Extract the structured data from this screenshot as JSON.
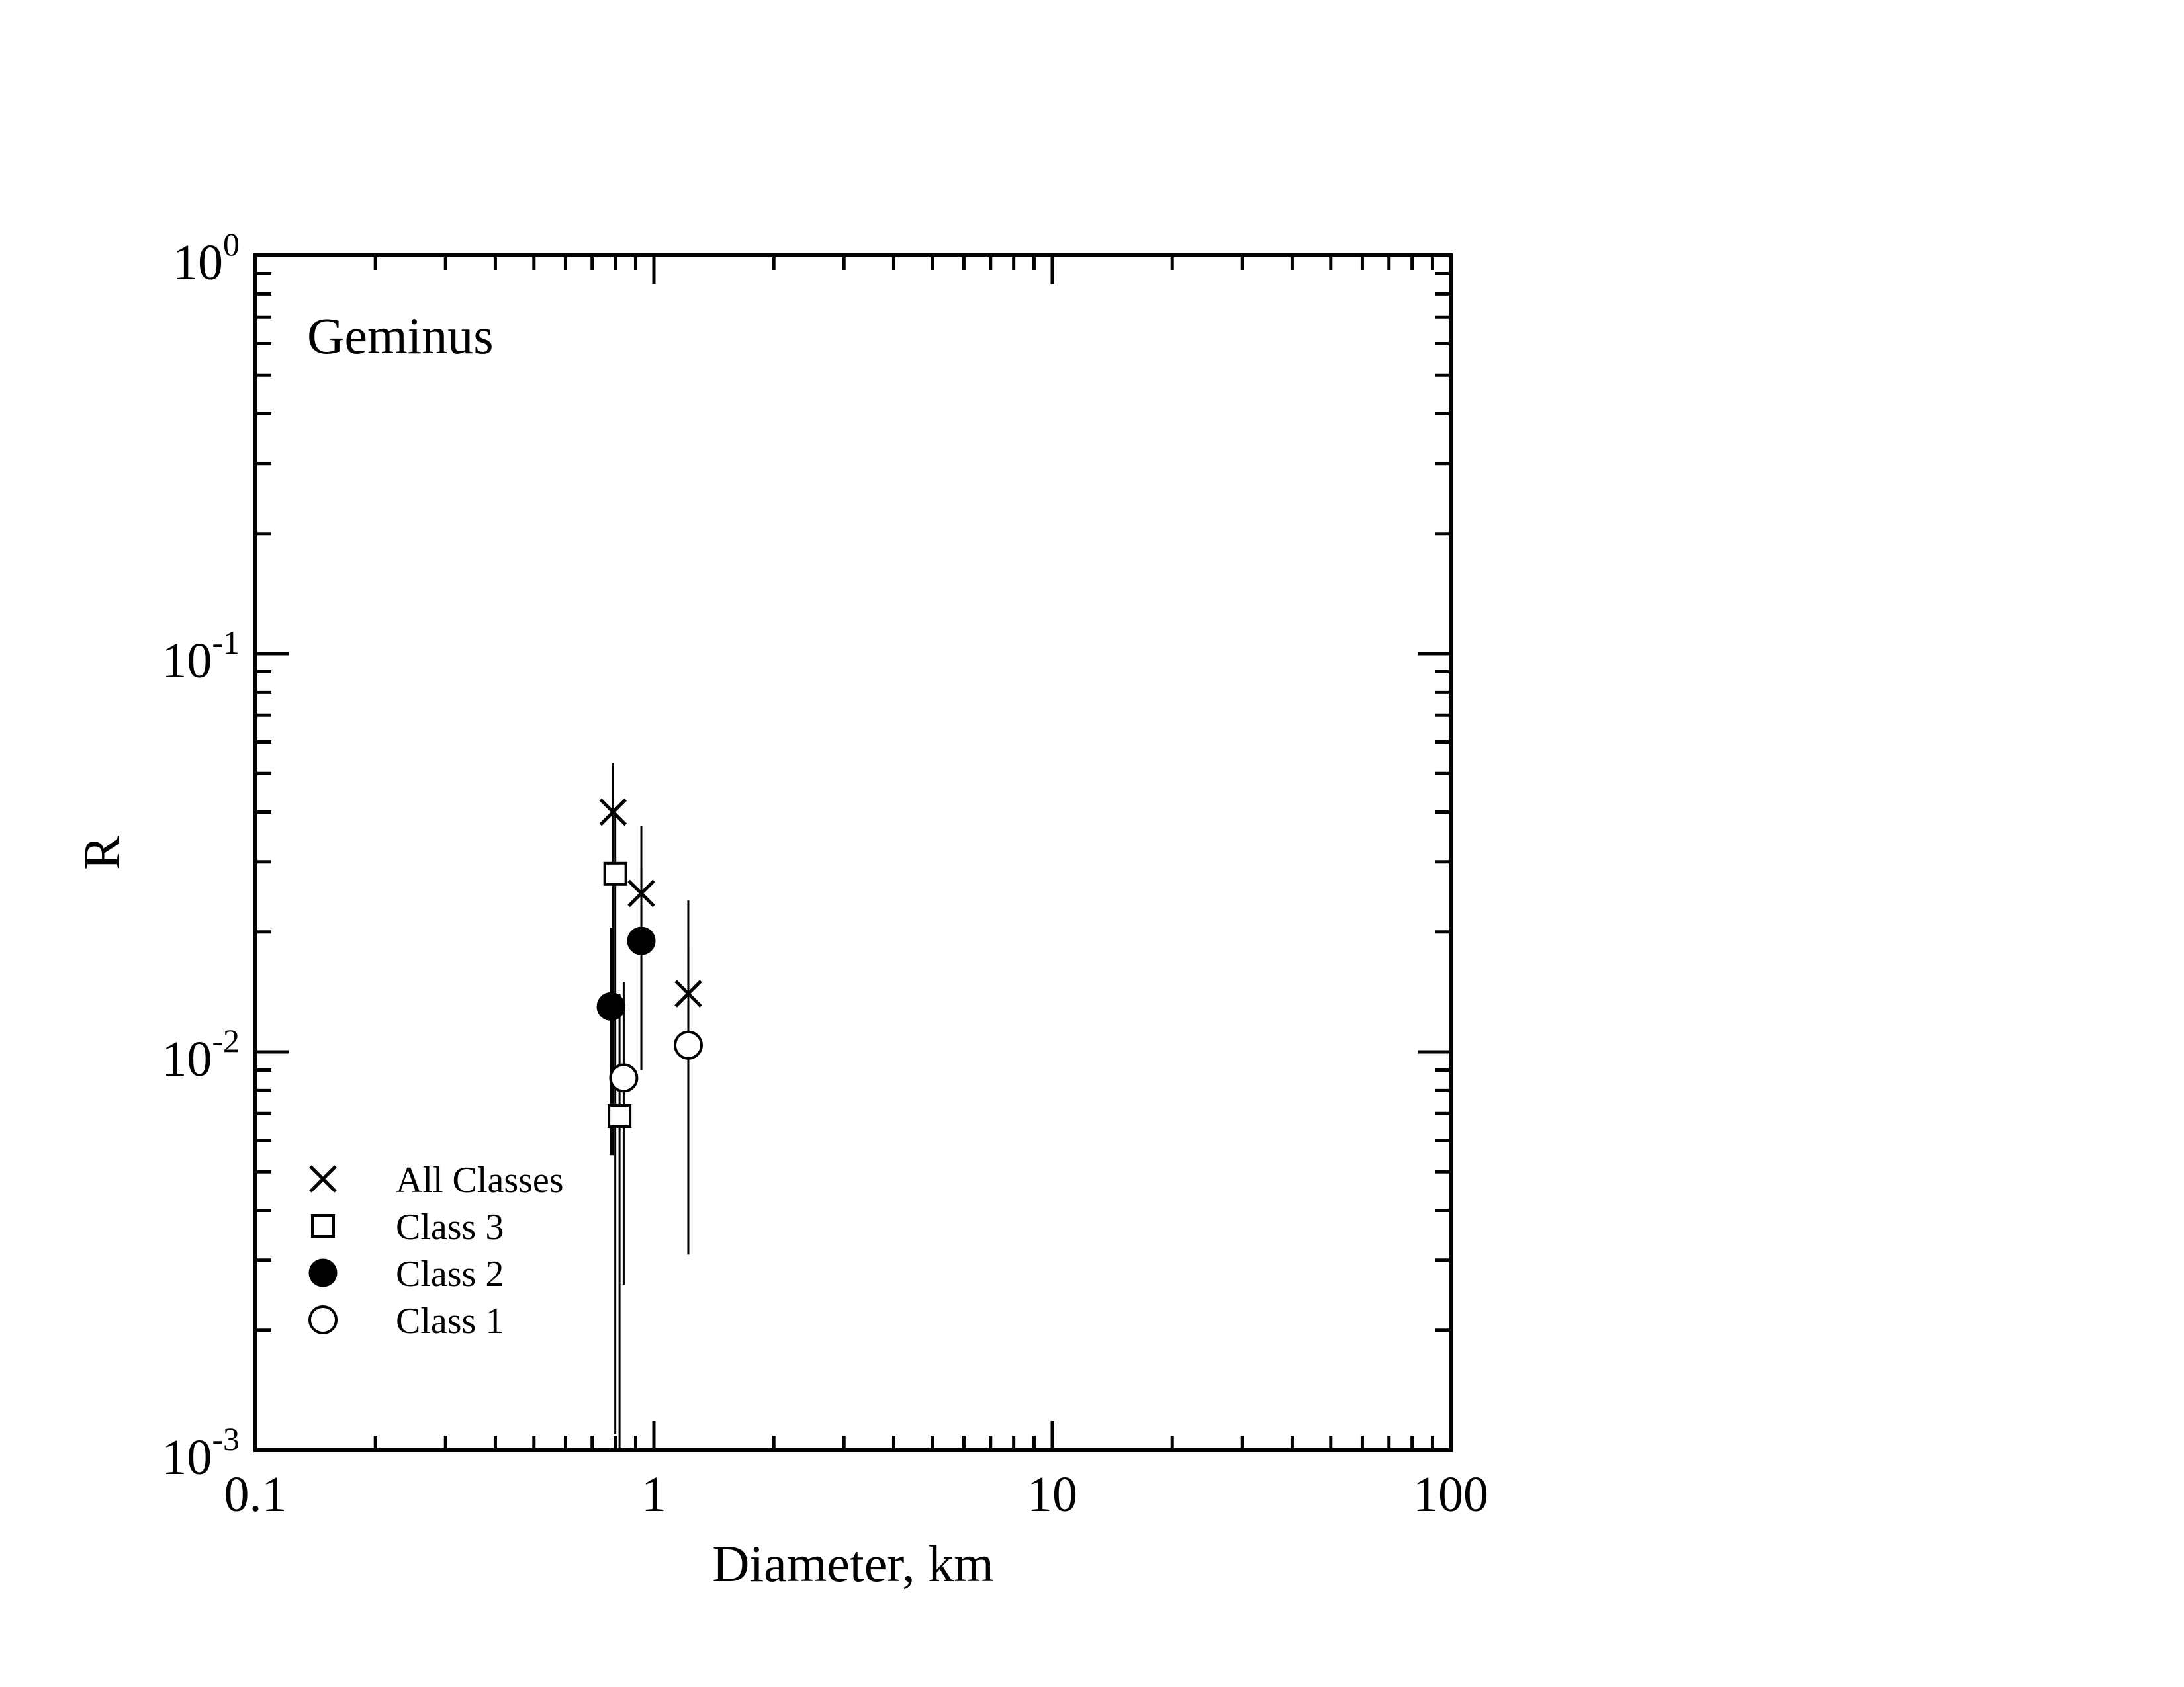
{
  "chart_data": {
    "type": "scatter",
    "annotation": "Geminus",
    "xlabel": "Diameter, km",
    "ylabel": "R",
    "xscale": "log",
    "yscale": "log",
    "xlim": [
      0.1,
      100
    ],
    "ylim": [
      0.001,
      1
    ],
    "x_tick_labels": [
      {
        "value": 0.1,
        "label": "0.1"
      },
      {
        "value": 1,
        "label": "1"
      },
      {
        "value": 10,
        "label": "10"
      },
      {
        "value": 100,
        "label": "100"
      }
    ],
    "y_tick_labels": [
      {
        "value": 1,
        "base": "10",
        "exp": "0"
      },
      {
        "value": 0.1,
        "base": "10",
        "exp": "-1"
      },
      {
        "value": 0.01,
        "base": "10",
        "exp": "-2"
      },
      {
        "value": 0.001,
        "base": "10",
        "exp": "-3"
      }
    ],
    "legend_position": "bottom-left",
    "series": [
      {
        "name": "All Classes",
        "marker": "x",
        "points": [
          {
            "x": 0.79,
            "y": 0.04,
            "ylow": 0.0055,
            "yhigh": 0.053
          },
          {
            "x": 0.93,
            "y": 0.025,
            "ylow": 0.009,
            "yhigh": 0.037
          },
          {
            "x": 1.22,
            "y": 0.014,
            "ylow": 0.0031,
            "yhigh": 0.024
          }
        ]
      },
      {
        "name": "Class 3",
        "marker": "open-square",
        "points": [
          {
            "x": 0.8,
            "y": 0.028,
            "ylow": 0.0011,
            "yhigh": 0.04
          },
          {
            "x": 0.82,
            "y": 0.0069,
            "ylow": 0.001,
            "yhigh": 0.014
          }
        ]
      },
      {
        "name": "Class 2",
        "marker": "filled-circle",
        "points": [
          {
            "x": 0.78,
            "y": 0.013,
            "ylow": 0.0055,
            "yhigh": 0.0205
          },
          {
            "x": 0.93,
            "y": 0.019,
            "ylow": 0.009,
            "yhigh": 0.029
          }
        ]
      },
      {
        "name": "Class 1",
        "marker": "open-circle",
        "points": [
          {
            "x": 0.84,
            "y": 0.0086,
            "ylow": 0.0026,
            "yhigh": 0.015
          },
          {
            "x": 1.22,
            "y": 0.0104,
            "ylow": 0.0031,
            "yhigh": 0.018
          }
        ]
      }
    ]
  }
}
